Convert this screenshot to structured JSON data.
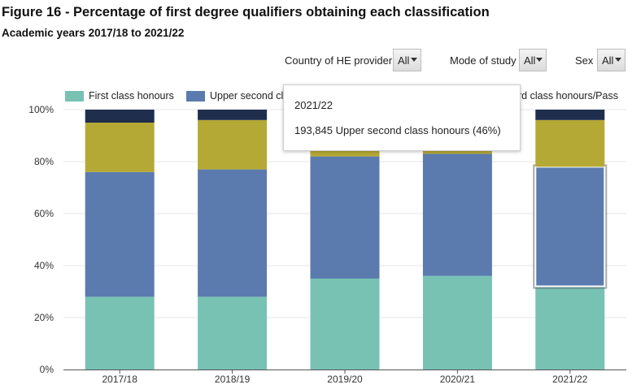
{
  "header": {
    "title": "Figure 16 - Percentage of first degree qualifiers obtaining each classification",
    "subtitle": "Academic years 2017/18 to 2021/22"
  },
  "filters": [
    {
      "label": "Country of HE provider",
      "value": "All"
    },
    {
      "label": "Mode of study",
      "value": "All"
    },
    {
      "label": "Sex",
      "value": "All"
    }
  ],
  "legend": {
    "items": [
      {
        "label": "First class honours",
        "color": "#78c2b4"
      },
      {
        "label": "Upper second cla",
        "color": "#5b7bae"
      },
      {
        "label": "rd class honours/Pass",
        "color": "#b5a935"
      }
    ]
  },
  "tooltip": {
    "line1": "2021/22",
    "line2": "193,845 Upper second class honours (46%)"
  },
  "chart_data": {
    "type": "bar",
    "stacked": true,
    "categories": [
      "2017/18",
      "2018/19",
      "2019/20",
      "2020/21",
      "2021/22"
    ],
    "series": [
      {
        "name": "First class honours",
        "color": "#78c2b4",
        "values": [
          28,
          28,
          35,
          36,
          32
        ]
      },
      {
        "name": "Upper second class honours",
        "color": "#5b7bae",
        "values": [
          48,
          49,
          47,
          47,
          46
        ]
      },
      {
        "name": "",
        "color": "#b5a935",
        "values": [
          19,
          19,
          12,
          12,
          18
        ]
      },
      {
        "name": "",
        "color": "#1f2e4d",
        "values": [
          5,
          4,
          6,
          5,
          4
        ]
      }
    ],
    "ylim": [
      0,
      100
    ],
    "yticks": [
      "0%",
      "20%",
      "40%",
      "60%",
      "80%",
      "100%"
    ],
    "grid": true,
    "highlight": {
      "category": "2021/22",
      "series": "Upper second class honours"
    }
  }
}
